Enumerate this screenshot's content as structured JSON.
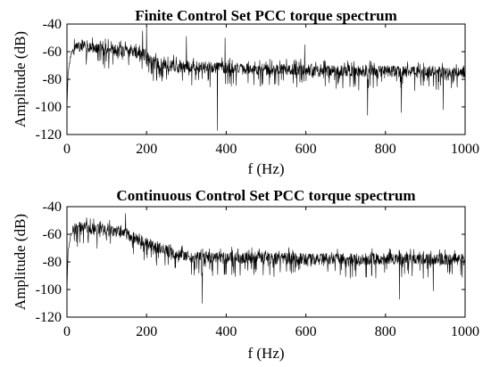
{
  "chart_data": [
    {
      "type": "line",
      "title": "Finite Control Set PCC torque spectrum",
      "xlabel": "f (Hz)",
      "ylabel": "Amplitude (dB)",
      "xlim": [
        0,
        1000
      ],
      "ylim": [
        -120,
        -40
      ],
      "xticks": [
        "0",
        "200",
        "400",
        "600",
        "800",
        "1000"
      ],
      "yticks": [
        "-40",
        "-60",
        "-80",
        "-100",
        "-120"
      ],
      "grid": false,
      "series_color": "#000000",
      "envelope": {
        "x": [
          0,
          3,
          10,
          20,
          40,
          80,
          120,
          160,
          180,
          200,
          210,
          250,
          300,
          400,
          500,
          600,
          700,
          800,
          900,
          1000
        ],
        "mean": [
          -100,
          -75,
          -62,
          -57,
          -56,
          -58,
          -59,
          -60,
          -61,
          -63,
          -67,
          -70,
          -71,
          -72,
          -73,
          -73,
          -74,
          -74,
          -75,
          -75
        ]
      },
      "peaks": [
        {
          "x": 190,
          "y": -45
        },
        {
          "x": 200,
          "y": -41
        },
        {
          "x": 300,
          "y": -49
        },
        {
          "x": 397,
          "y": -50
        },
        {
          "x": 597,
          "y": -55
        },
        {
          "x": 378,
          "y": -117
        },
        {
          "x": 755,
          "y": -106
        },
        {
          "x": 840,
          "y": -104
        },
        {
          "x": 945,
          "y": -102
        }
      ]
    },
    {
      "type": "line",
      "title": "Continuous Control Set PCC torque spectrum",
      "xlabel": "f (Hz)",
      "ylabel": "Amplitude (dB)",
      "xlim": [
        0,
        1000
      ],
      "ylim": [
        -120,
        -40
      ],
      "xticks": [
        "0",
        "200",
        "400",
        "600",
        "800",
        "1000"
      ],
      "yticks": [
        "-40",
        "-60",
        "-80",
        "-100",
        "-120"
      ],
      "grid": false,
      "series_color": "#000000",
      "envelope": {
        "x": [
          0,
          3,
          10,
          20,
          40,
          80,
          120,
          150,
          200,
          250,
          300,
          400,
          500,
          600,
          700,
          800,
          900,
          1000
        ],
        "mean": [
          -100,
          -72,
          -60,
          -56,
          -55,
          -57,
          -58,
          -60,
          -66,
          -72,
          -76,
          -77,
          -77,
          -78,
          -78,
          -78,
          -78,
          -78
        ]
      },
      "peaks": [
        {
          "x": 147,
          "y": -45
        },
        {
          "x": 340,
          "y": -110
        },
        {
          "x": 835,
          "y": -107
        },
        {
          "x": 920,
          "y": -101
        }
      ]
    }
  ]
}
